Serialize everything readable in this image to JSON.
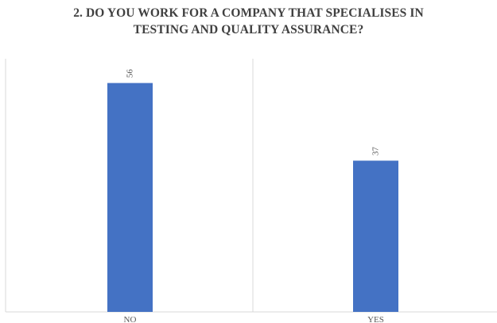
{
  "chart_data": {
    "type": "bar",
    "title_lines": [
      "2. DO YOU WORK FOR A COMPANY THAT SPECIALISES IN",
      "TESTING AND QUALITY ASSURANCE?"
    ],
    "categories": [
      "NO",
      "YES"
    ],
    "values": [
      56,
      37
    ],
    "data_labels": [
      "56",
      "37"
    ],
    "xlabel": "",
    "ylabel": "",
    "ylim": [
      0,
      60
    ],
    "grid": false,
    "legend": "none",
    "bar_color": "#4472C4",
    "divider_color": "#D9D9D9"
  }
}
